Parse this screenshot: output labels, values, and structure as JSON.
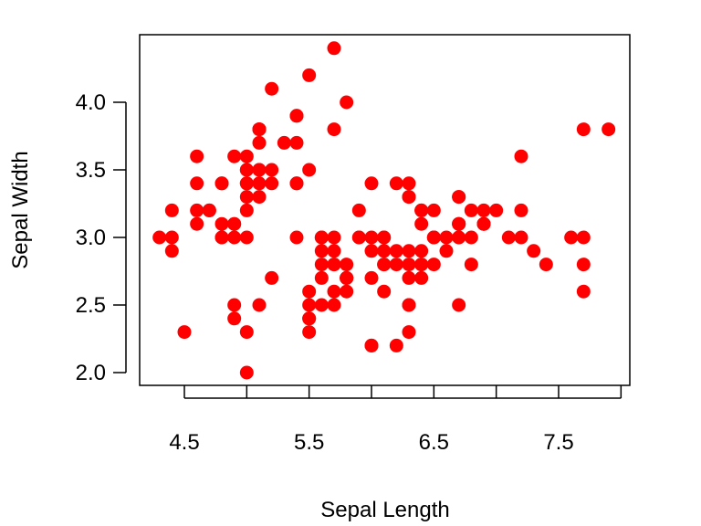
{
  "chart_data": {
    "type": "scatter",
    "title": "",
    "xlabel": "Sepal Length",
    "ylabel": "Sepal Width",
    "xlim": [
      4.3,
      7.9
    ],
    "ylim": [
      2.0,
      4.4
    ],
    "xticks": [
      "4.5",
      "5.5",
      "6.5",
      "7.5"
    ],
    "yticks": [
      "2.0",
      "2.5",
      "3.0",
      "3.5",
      "4.0"
    ],
    "grid": false,
    "point_color": "#ff0000",
    "axis_color": "#000000",
    "series": [
      {
        "x": [
          5.1,
          4.9,
          4.7,
          4.6,
          5.0,
          5.4,
          4.6,
          5.0,
          4.4,
          4.9,
          5.4,
          4.8,
          4.8,
          4.3,
          5.8,
          5.7,
          5.4,
          5.1,
          5.7,
          5.1,
          5.4,
          5.1,
          4.6,
          5.1,
          4.8,
          5.0,
          5.0,
          5.2,
          5.2,
          4.7,
          4.8,
          5.4,
          5.2,
          5.5,
          4.9,
          5.0,
          5.5,
          4.9,
          4.4,
          5.1,
          5.0,
          4.5,
          4.4,
          5.0,
          5.1,
          4.8,
          5.1,
          4.6,
          5.3,
          5.0,
          7.0,
          6.4,
          6.9,
          5.5,
          6.5,
          5.7,
          6.3,
          4.9,
          6.6,
          5.2,
          5.0,
          5.9,
          6.0,
          6.1,
          5.6,
          6.7,
          5.6,
          5.8,
          6.2,
          5.6,
          5.9,
          6.1,
          6.3,
          6.1,
          6.4,
          6.6,
          6.8,
          6.7,
          6.0,
          5.7,
          5.5,
          5.5,
          5.8,
          6.0,
          5.4,
          6.0,
          6.7,
          6.3,
          5.6,
          5.5,
          5.5,
          6.1,
          5.8,
          5.0,
          5.6,
          5.7,
          5.7,
          6.2,
          5.1,
          5.7,
          6.3,
          5.8,
          7.1,
          6.3,
          6.5,
          7.6,
          4.9,
          7.3,
          6.7,
          7.2,
          6.5,
          6.4,
          6.8,
          5.7,
          5.8,
          6.4,
          6.5,
          7.7,
          7.7,
          6.0,
          6.9,
          5.6,
          7.7,
          6.3,
          6.7,
          7.2,
          6.2,
          6.1,
          6.4,
          7.2,
          7.4,
          7.9,
          6.4,
          6.3,
          6.1,
          7.7,
          6.3,
          6.4,
          6.0,
          6.9,
          6.7,
          6.9,
          5.8,
          6.8,
          6.7,
          6.7,
          6.3,
          6.5,
          6.2,
          5.9
        ],
        "y": [
          3.5,
          3.0,
          3.2,
          3.1,
          3.6,
          3.9,
          3.4,
          3.4,
          2.9,
          3.1,
          3.7,
          3.4,
          3.0,
          3.0,
          4.0,
          4.4,
          3.9,
          3.5,
          3.8,
          3.8,
          3.4,
          3.7,
          3.6,
          3.3,
          3.4,
          3.0,
          3.4,
          3.5,
          3.4,
          3.2,
          3.1,
          3.4,
          4.1,
          4.2,
          3.1,
          3.2,
          3.5,
          3.6,
          3.0,
          3.4,
          3.5,
          2.3,
          3.2,
          3.5,
          3.8,
          3.0,
          3.8,
          3.2,
          3.7,
          3.3,
          3.2,
          3.2,
          3.1,
          2.3,
          2.8,
          2.8,
          3.3,
          2.4,
          2.9,
          2.7,
          2.0,
          3.0,
          2.2,
          2.9,
          2.9,
          3.1,
          3.0,
          2.7,
          2.2,
          2.5,
          3.2,
          2.8,
          2.5,
          2.8,
          2.9,
          3.0,
          2.8,
          3.0,
          2.9,
          2.6,
          2.4,
          2.4,
          2.7,
          2.7,
          3.0,
          3.4,
          3.1,
          2.3,
          3.0,
          2.5,
          2.6,
          3.0,
          2.6,
          2.3,
          2.7,
          3.0,
          2.9,
          2.9,
          2.5,
          2.8,
          3.3,
          2.7,
          3.0,
          2.9,
          3.0,
          3.0,
          2.5,
          2.9,
          2.5,
          3.6,
          3.2,
          2.7,
          3.0,
          2.5,
          2.8,
          3.2,
          3.0,
          3.8,
          2.6,
          2.2,
          3.2,
          2.8,
          2.8,
          2.7,
          3.3,
          3.2,
          2.8,
          3.0,
          2.8,
          3.0,
          2.8,
          3.8,
          2.8,
          2.8,
          2.6,
          3.0,
          3.4,
          3.1,
          3.0,
          3.1,
          3.1,
          3.1,
          2.7,
          3.2,
          3.3,
          3.0,
          2.5,
          3.0,
          3.4,
          3.0
        ]
      }
    ]
  }
}
